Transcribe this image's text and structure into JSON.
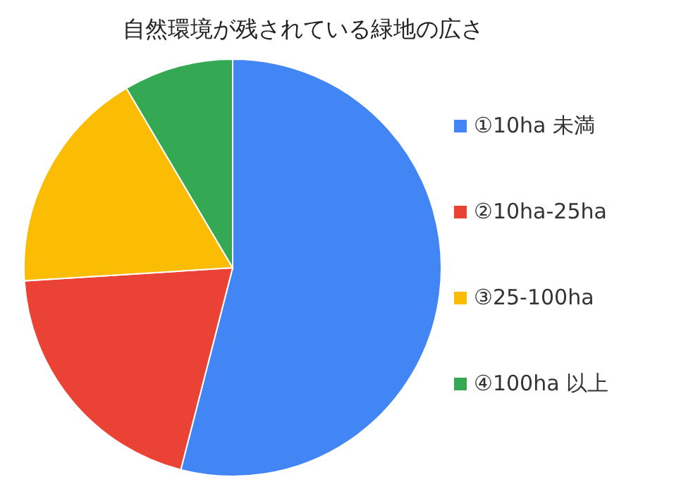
{
  "chart_data": {
    "type": "pie",
    "title": "自然環境が残されている緑地の広さ",
    "categories": [
      "①10ha 未満",
      "②10ha-25ha",
      "③25-100ha",
      "④100ha 以上"
    ],
    "values": [
      54,
      20,
      17.5,
      8.5
    ],
    "colors": [
      "#4285f4",
      "#ea4335",
      "#fbbc04",
      "#34a853"
    ],
    "legend": "right"
  }
}
